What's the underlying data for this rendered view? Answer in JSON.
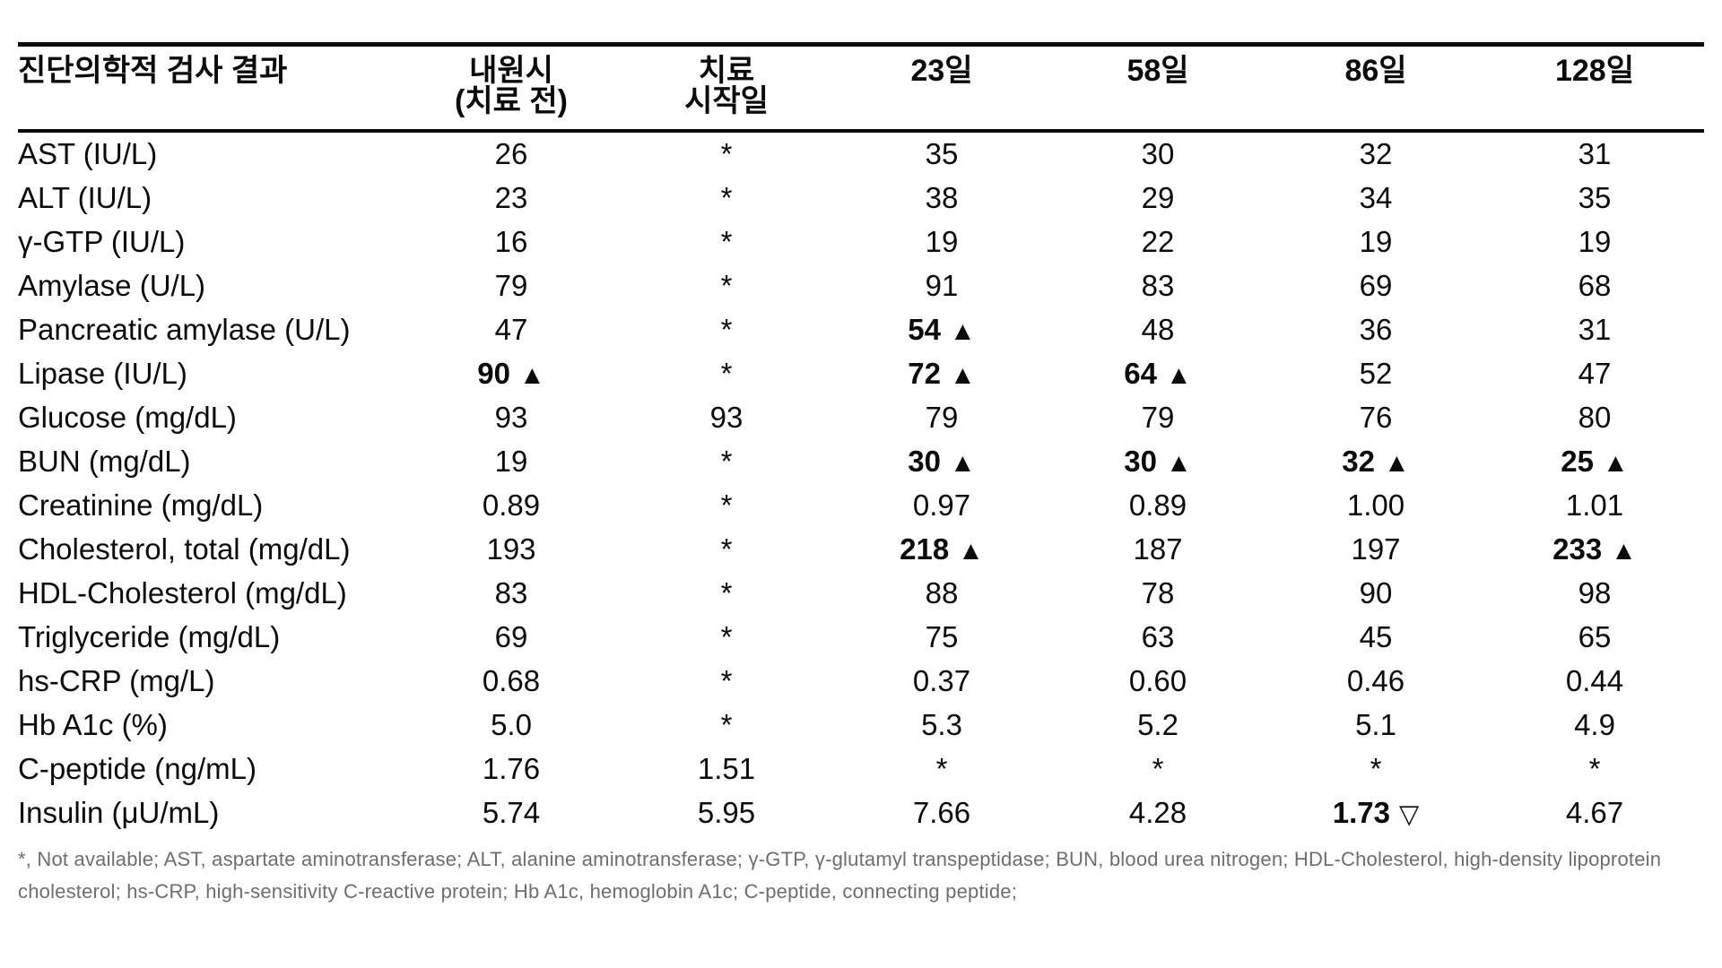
{
  "table": {
    "header": [
      {
        "lines": [
          "진단의학적 검사 결과"
        ]
      },
      {
        "lines": [
          "내원시",
          "(치료 전)"
        ]
      },
      {
        "lines": [
          "치료",
          "시작일"
        ]
      },
      {
        "lines": [
          "23일"
        ]
      },
      {
        "lines": [
          "58일"
        ]
      },
      {
        "lines": [
          "86일"
        ]
      },
      {
        "lines": [
          "128일"
        ]
      }
    ],
    "rows": [
      {
        "label": "AST (IU/L)",
        "cells": [
          {
            "t": "26"
          },
          {
            "t": "*"
          },
          {
            "t": "35"
          },
          {
            "t": "30"
          },
          {
            "t": "32"
          },
          {
            "t": "31"
          }
        ]
      },
      {
        "label": "ALT (IU/L)",
        "cells": [
          {
            "t": "23"
          },
          {
            "t": "*"
          },
          {
            "t": "38"
          },
          {
            "t": "29"
          },
          {
            "t": "34"
          },
          {
            "t": "35"
          }
        ]
      },
      {
        "label": "γ-GTP (IU/L)",
        "cells": [
          {
            "t": "16"
          },
          {
            "t": "*"
          },
          {
            "t": "19"
          },
          {
            "t": "22"
          },
          {
            "t": "19"
          },
          {
            "t": "19"
          }
        ]
      },
      {
        "label": "Amylase (U/L)",
        "cells": [
          {
            "t": "79"
          },
          {
            "t": "*"
          },
          {
            "t": "91"
          },
          {
            "t": "83"
          },
          {
            "t": "69"
          },
          {
            "t": "68"
          }
        ]
      },
      {
        "label": "Pancreatic amylase (U/L)",
        "cells": [
          {
            "t": "47"
          },
          {
            "t": "*"
          },
          {
            "t": "54",
            "mark": "up",
            "b": true
          },
          {
            "t": "48"
          },
          {
            "t": "36"
          },
          {
            "t": "31"
          }
        ]
      },
      {
        "label": "Lipase (IU/L)",
        "cells": [
          {
            "t": "90",
            "mark": "up",
            "b": true
          },
          {
            "t": "*"
          },
          {
            "t": "72",
            "mark": "up",
            "b": true
          },
          {
            "t": "64",
            "mark": "up",
            "b": true
          },
          {
            "t": "52"
          },
          {
            "t": "47"
          }
        ]
      },
      {
        "label": "Glucose (mg/dL)",
        "cells": [
          {
            "t": "93"
          },
          {
            "t": "93"
          },
          {
            "t": "79"
          },
          {
            "t": "79"
          },
          {
            "t": "76"
          },
          {
            "t": "80"
          }
        ]
      },
      {
        "label": "BUN (mg/dL)",
        "cells": [
          {
            "t": "19"
          },
          {
            "t": "*"
          },
          {
            "t": "30",
            "mark": "up",
            "b": true
          },
          {
            "t": "30",
            "mark": "up",
            "b": true
          },
          {
            "t": "32",
            "mark": "up",
            "b": true
          },
          {
            "t": "25",
            "mark": "up",
            "b": true
          }
        ]
      },
      {
        "label": "Creatinine (mg/dL)",
        "cells": [
          {
            "t": "0.89"
          },
          {
            "t": "*"
          },
          {
            "t": "0.97"
          },
          {
            "t": "0.89"
          },
          {
            "t": "1.00"
          },
          {
            "t": "1.01"
          }
        ]
      },
      {
        "label": "Cholesterol, total (mg/dL)",
        "cells": [
          {
            "t": "193"
          },
          {
            "t": "*"
          },
          {
            "t": "218",
            "mark": "up",
            "b": true
          },
          {
            "t": "187"
          },
          {
            "t": "197"
          },
          {
            "t": "233",
            "mark": "up",
            "b": true
          }
        ]
      },
      {
        "label": "HDL-Cholesterol (mg/dL)",
        "cells": [
          {
            "t": "83"
          },
          {
            "t": "*"
          },
          {
            "t": "88"
          },
          {
            "t": "78"
          },
          {
            "t": "90"
          },
          {
            "t": "98"
          }
        ]
      },
      {
        "label": "Triglyceride (mg/dL)",
        "cells": [
          {
            "t": "69"
          },
          {
            "t": "*"
          },
          {
            "t": "75"
          },
          {
            "t": "63"
          },
          {
            "t": "45"
          },
          {
            "t": "65"
          }
        ]
      },
      {
        "label": "hs-CRP (mg/L)",
        "cells": [
          {
            "t": "0.68"
          },
          {
            "t": "*"
          },
          {
            "t": "0.37"
          },
          {
            "t": "0.60"
          },
          {
            "t": "0.46"
          },
          {
            "t": "0.44"
          }
        ]
      },
      {
        "label": "Hb A1c (%)",
        "cells": [
          {
            "t": "5.0"
          },
          {
            "t": "*"
          },
          {
            "t": "5.3"
          },
          {
            "t": "5.2"
          },
          {
            "t": "5.1"
          },
          {
            "t": "4.9"
          }
        ]
      },
      {
        "label": "C-peptide (ng/mL)",
        "cells": [
          {
            "t": "1.76"
          },
          {
            "t": "1.51"
          },
          {
            "t": "*"
          },
          {
            "t": "*"
          },
          {
            "t": "*"
          },
          {
            "t": "*"
          }
        ]
      },
      {
        "label": "Insulin (μU/mL)",
        "cells": [
          {
            "t": "5.74"
          },
          {
            "t": "5.95"
          },
          {
            "t": "7.66"
          },
          {
            "t": "4.28"
          },
          {
            "t": "1.73",
            "mark": "down",
            "b": true
          },
          {
            "t": "4.67"
          }
        ]
      }
    ]
  },
  "markers": {
    "up": "▲",
    "down": "▽"
  },
  "footnote": "*, Not available; AST, aspartate aminotransferase; ALT, alanine aminotransferase; γ-GTP, γ-glutamyl transpeptidase; BUN, blood urea nitrogen; HDL-Cholesterol, high-density lipoprotein cholesterol; hs-CRP, high-sensitivity C-reactive protein; Hb A1c, hemoglobin A1c; C-peptide, connecting peptide;",
  "colors": {
    "text": "#0b0b0b",
    "rule": "#0b0b0b",
    "footnote": "#6e6e6e",
    "background": "#ffffff"
  }
}
